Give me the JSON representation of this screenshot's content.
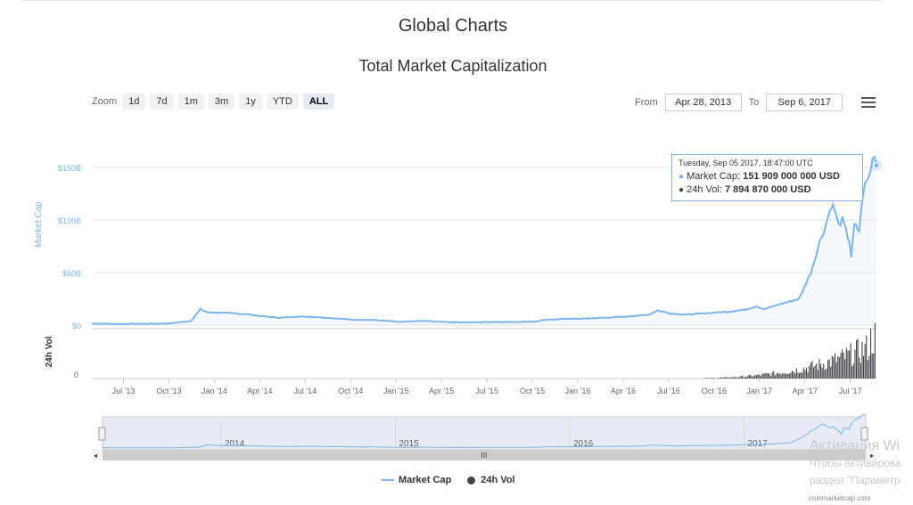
{
  "header": {
    "page_title": "Global Charts"
  },
  "zoom": {
    "label": "Zoom",
    "buttons": [
      "1d",
      "7d",
      "1m",
      "3m",
      "1y",
      "YTD",
      "ALL"
    ],
    "active": "ALL"
  },
  "range": {
    "from_label": "From",
    "from_value": "Apr 28, 2013",
    "to_label": "To",
    "to_value": "Sep 6, 2017"
  },
  "tooltip": {
    "date": "Tuesday, Sep 05 2017, 18:47:00 UTC",
    "cap_label": "Market Cap:",
    "cap_value": "151 909 000 000 USD",
    "vol_label": "24h Vol:",
    "vol_value": "7 894 870 000 USD"
  },
  "navigator": {
    "scroll_label": "III"
  },
  "legend": {
    "cap": "Market Cap",
    "vol": "24h Vol"
  },
  "watermark": {
    "line1": "Активация Wi",
    "line2": "Чтобы активирова",
    "line3": "раздел \"Параметр"
  },
  "credit": "coinmarketcap.com",
  "colors": {
    "cap": "#7cb5ec",
    "vol": "#434348",
    "navigator_mask": "#e6ebf5"
  },
  "chart_data": {
    "type": "area",
    "title": "Total Market Capitalization",
    "ylabel": "Market Cap",
    "ylabel2": "24h Vol",
    "ylim": [
      0,
      150
    ],
    "yticks": [
      "$0",
      "$50B",
      "$100B",
      "$150B"
    ],
    "vol_ticks": [
      "0"
    ],
    "xticks": [
      "Jul '13",
      "Oct '13",
      "Jan '14",
      "Apr '14",
      "Jul '14",
      "Oct '14",
      "Jan '15",
      "Apr '15",
      "Jul '15",
      "Oct '15",
      "Jan '16",
      "Apr '16",
      "Jul '16",
      "Oct '16",
      "Jan '17",
      "Apr '17",
      "Jul '17"
    ],
    "nav_years": [
      "2014",
      "2015",
      "2016",
      "2017"
    ],
    "x": [
      "2013-04-28",
      "2013-07-01",
      "2013-10-01",
      "2013-11-15",
      "2013-12-04",
      "2013-12-20",
      "2014-01-10",
      "2014-02-15",
      "2014-03-15",
      "2014-04-15",
      "2014-05-15",
      "2014-06-15",
      "2014-07-15",
      "2014-08-15",
      "2014-09-15",
      "2014-10-15",
      "2014-11-15",
      "2014-12-15",
      "2015-01-15",
      "2015-03-01",
      "2015-04-15",
      "2015-06-01",
      "2015-07-15",
      "2015-09-01",
      "2015-10-15",
      "2015-11-05",
      "2015-12-15",
      "2016-01-15",
      "2016-03-01",
      "2016-04-15",
      "2016-06-01",
      "2016-06-18",
      "2016-07-15",
      "2016-08-15",
      "2016-09-15",
      "2016-10-15",
      "2016-11-15",
      "2016-12-15",
      "2017-01-05",
      "2017-01-20",
      "2017-02-15",
      "2017-03-10",
      "2017-04-01",
      "2017-04-25",
      "2017-05-10",
      "2017-05-25",
      "2017-06-06",
      "2017-06-12",
      "2017-06-20",
      "2017-06-28",
      "2017-07-05",
      "2017-07-12",
      "2017-07-16",
      "2017-07-22",
      "2017-08-01",
      "2017-08-10",
      "2017-08-20",
      "2017-09-01",
      "2017-09-05"
    ],
    "series": [
      {
        "name": "Market Cap",
        "values": [
          1.5,
          1.0,
          1.5,
          4,
          15,
          12,
          12,
          11,
          10,
          8,
          7,
          8,
          8,
          7,
          6,
          5,
          5,
          4,
          3,
          4,
          3,
          2.5,
          3,
          3,
          3.5,
          5,
          6,
          6,
          7,
          8,
          10,
          14,
          11,
          10,
          11,
          12,
          13,
          15,
          18,
          15,
          19,
          22,
          25,
          50,
          75,
          95,
          115,
          110,
          95,
          100,
          90,
          80,
          65,
          95,
          90,
          130,
          140,
          165,
          152
        ]
      }
    ],
    "volume": {
      "name": "24h Vol",
      "note": "volume bars rise from mid-2016, peaking Aug-Sep 2017"
    }
  }
}
